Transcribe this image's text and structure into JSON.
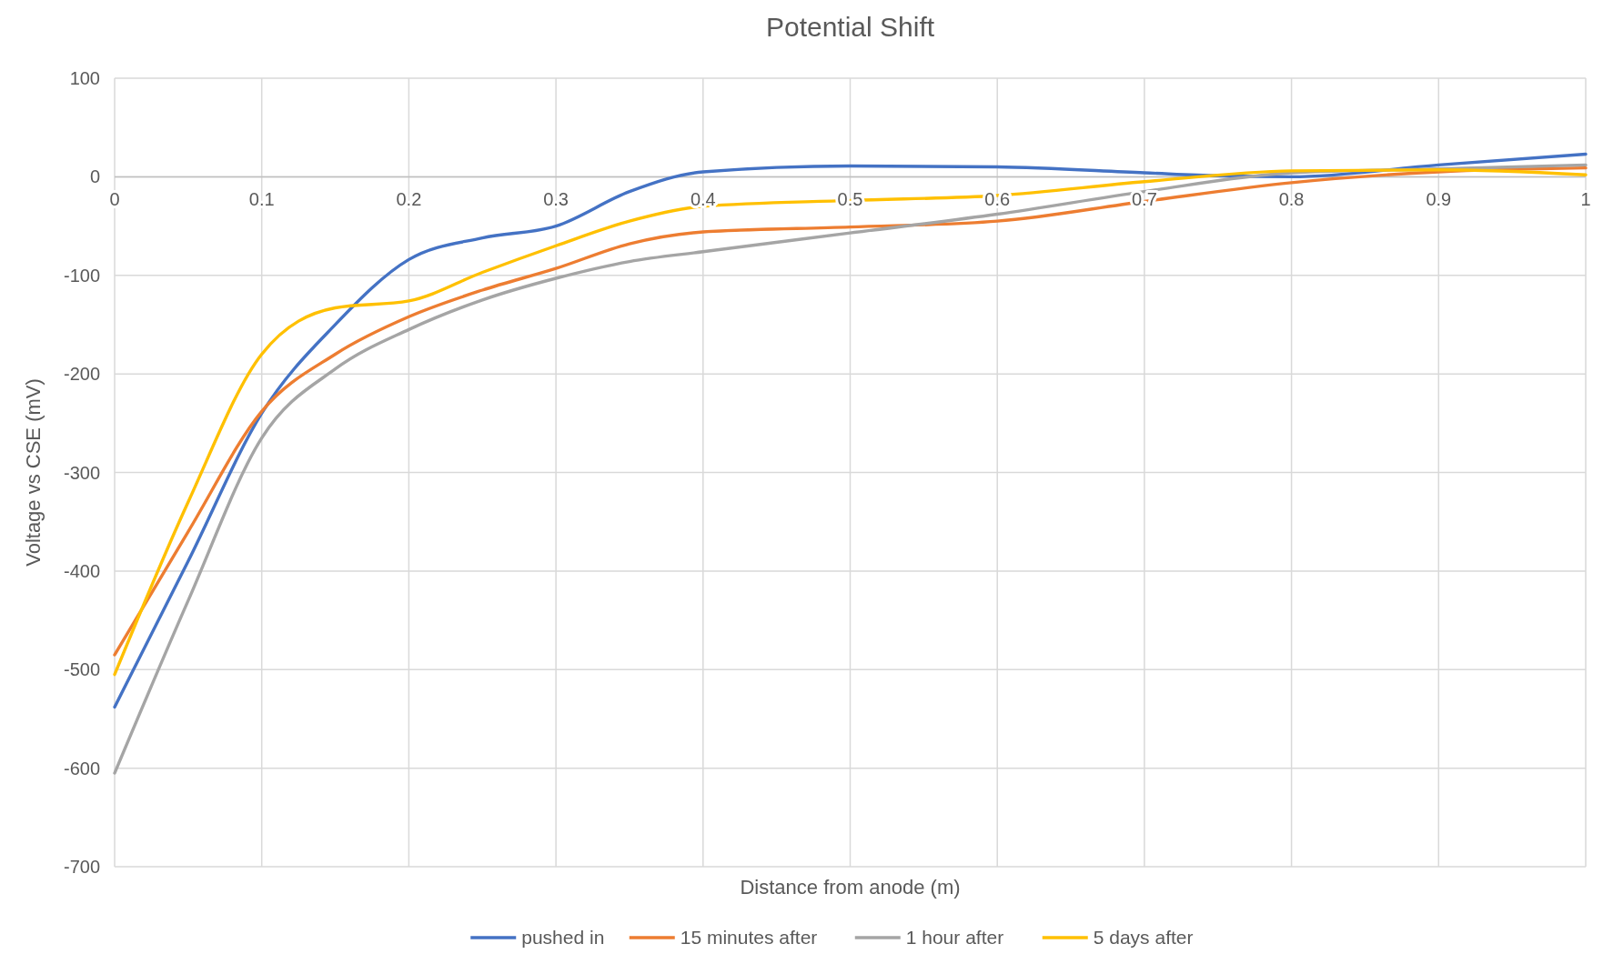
{
  "chart_data": {
    "type": "line",
    "title": "Potential Shift",
    "xlabel": "Distance from anode (m)",
    "ylabel": "Voltage vs CSE (mV)",
    "xlim": [
      0,
      1
    ],
    "xticks": [
      0,
      0.1,
      0.2,
      0.3,
      0.4,
      0.5,
      0.6,
      0.7,
      0.8,
      0.9,
      1
    ],
    "ylim": [
      -700,
      100
    ],
    "yticks": [
      -700,
      -600,
      -500,
      -400,
      -300,
      -200,
      -100,
      0,
      100
    ],
    "grid": true,
    "legend": "bottom",
    "line_style": "solid",
    "series": [
      {
        "name": "pushed in",
        "color": "#4472c4",
        "x": [
          0,
          0.05,
          0.1,
          0.15,
          0.2,
          0.25,
          0.3,
          0.35,
          0.4,
          0.5,
          0.6,
          0.7,
          0.75,
          0.8,
          0.9,
          1
        ],
        "values": [
          -538,
          -390,
          -240,
          -150,
          -84,
          -62,
          -50,
          -15,
          5,
          11,
          10,
          4,
          1,
          0,
          12,
          23
        ]
      },
      {
        "name": "15 minutes after",
        "color": "#ed7d31",
        "x": [
          0,
          0.05,
          0.1,
          0.15,
          0.2,
          0.25,
          0.3,
          0.35,
          0.4,
          0.5,
          0.6,
          0.7,
          0.8,
          0.9,
          1
        ],
        "values": [
          -485,
          -360,
          -238,
          -180,
          -142,
          -115,
          -93,
          -68,
          -56,
          -51,
          -45,
          -25,
          -6,
          5,
          9
        ]
      },
      {
        "name": "1 hour after",
        "color": "#a5a5a5",
        "x": [
          0,
          0.05,
          0.1,
          0.15,
          0.2,
          0.25,
          0.3,
          0.35,
          0.4,
          0.5,
          0.6,
          0.7,
          0.8,
          0.9,
          1
        ],
        "values": [
          -605,
          -430,
          -265,
          -195,
          -155,
          -125,
          -103,
          -86,
          -76,
          -57,
          -38,
          -15,
          4,
          8,
          12
        ]
      },
      {
        "name": "5 days after",
        "color": "#ffc000",
        "x": [
          0,
          0.05,
          0.1,
          0.15,
          0.2,
          0.25,
          0.3,
          0.35,
          0.4,
          0.5,
          0.6,
          0.7,
          0.8,
          0.9,
          1
        ],
        "values": [
          -505,
          -330,
          -180,
          -133,
          -126,
          -97,
          -70,
          -45,
          -30,
          -24,
          -19,
          -5,
          6,
          7,
          2
        ]
      }
    ]
  }
}
